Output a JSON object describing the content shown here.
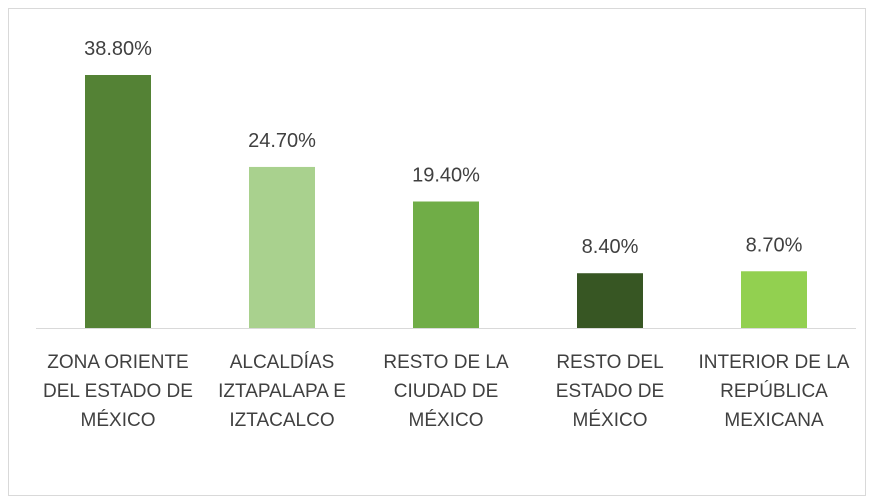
{
  "chart_data": {
    "type": "bar",
    "categories": [
      "ZONA ORIENTE DEL ESTADO DE MÉXICO",
      "ALCALDÍAS IZTAPALAPA E IZTACALCO",
      "RESTO DE LA CIUDAD DE MÉXICO",
      "RESTO DEL ESTADO DE MÉXICO",
      "INTERIOR DE LA REPÚBLICA MEXICANA"
    ],
    "values": [
      38.8,
      24.7,
      19.4,
      8.4,
      8.7
    ],
    "value_labels": [
      "38.80%",
      "24.70%",
      "19.40%",
      "8.40%",
      "8.70%"
    ],
    "colors": [
      "#548235",
      "#a9d18e",
      "#70ad47",
      "#375623",
      "#92d050"
    ]
  }
}
